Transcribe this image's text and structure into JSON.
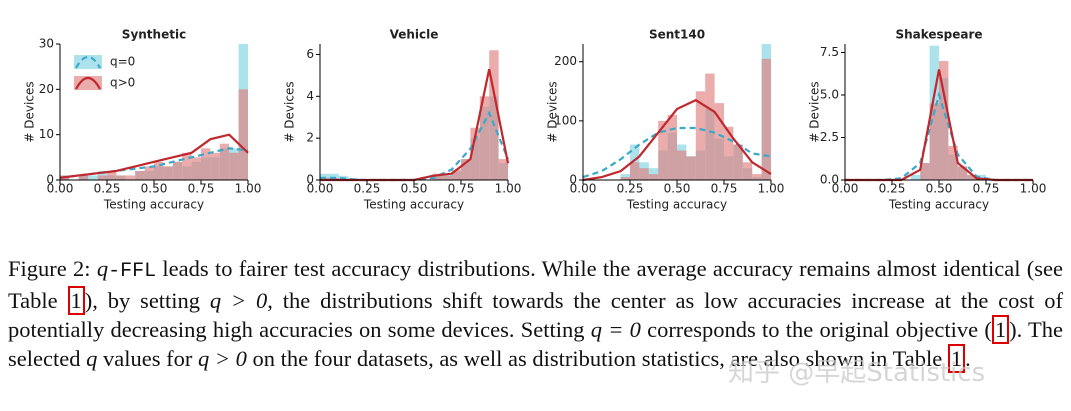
{
  "chart_data": [
    {
      "type": "histogram",
      "title": "Synthetic",
      "x_label": "Testing accuracy",
      "y_label": "# Devices",
      "legend": "upper left",
      "xlim": [
        0,
        1
      ],
      "xticks": [
        {
          "value": 0,
          "label": "0.00"
        },
        {
          "value": 0.25,
          "label": "0.25"
        },
        {
          "value": 0.5,
          "label": "0.50"
        },
        {
          "value": 0.75,
          "label": "0.75"
        },
        {
          "value": 1,
          "label": "1.00"
        }
      ],
      "ylim": [
        0,
        30
      ],
      "yticks": [
        0,
        10,
        20,
        30
      ],
      "bins": [
        0,
        0.05,
        0.1,
        0.15,
        0.2,
        0.25,
        0.3,
        0.35,
        0.4,
        0.45,
        0.5,
        0.55,
        0.6,
        0.65,
        0.7,
        0.75,
        0.8,
        0.85,
        0.9,
        0.95,
        1
      ],
      "curve_x": [
        0,
        0.1,
        0.2,
        0.3,
        0.4,
        0.5,
        0.6,
        0.7,
        0.8,
        0.9,
        1
      ],
      "series": [
        {
          "name": "q=0",
          "color": "#7fd3e0",
          "line_color": "#3aa8c8",
          "values": [
            1,
            0,
            1,
            1,
            2,
            1,
            1,
            0,
            2,
            2,
            3,
            3,
            4,
            3,
            4,
            5,
            5,
            7,
            7,
            30
          ],
          "curve": [
            0.5,
            1,
            1.5,
            2,
            2.5,
            3,
            4,
            5,
            6,
            7,
            6.5
          ]
        },
        {
          "name": "q>0",
          "color": "#e07f7f",
          "line_color": "#c0282d",
          "values": [
            1,
            0,
            1,
            0,
            1,
            2,
            1,
            1,
            2,
            3,
            4,
            3,
            4,
            6,
            5,
            7,
            6,
            8,
            6,
            20
          ],
          "curve": [
            0.5,
            1,
            1.5,
            2,
            3,
            4,
            5,
            6,
            9,
            10,
            6
          ]
        }
      ]
    },
    {
      "type": "histogram",
      "title": "Vehicle",
      "x_label": "Testing accuracy",
      "y_label": "# Devices",
      "xlim": [
        0,
        1
      ],
      "xticks": [
        {
          "value": 0,
          "label": "0.00"
        },
        {
          "value": 0.25,
          "label": "0.25"
        },
        {
          "value": 0.5,
          "label": "0.50"
        },
        {
          "value": 0.75,
          "label": "0.75"
        },
        {
          "value": 1,
          "label": "1.00"
        }
      ],
      "ylim": [
        0,
        6.5
      ],
      "yticks": [
        0,
        2,
        4,
        6
      ],
      "bins": [
        0,
        0.05,
        0.1,
        0.15,
        0.2,
        0.25,
        0.3,
        0.35,
        0.4,
        0.45,
        0.5,
        0.55,
        0.6,
        0.65,
        0.7,
        0.75,
        0.8,
        0.85,
        0.9,
        0.95,
        1
      ],
      "curve_x": [
        0,
        0.1,
        0.2,
        0.3,
        0.4,
        0.5,
        0.6,
        0.7,
        0.8,
        0.9,
        1
      ],
      "series": [
        {
          "name": "q=0",
          "color": "#7fd3e0",
          "line_color": "#3aa8c8",
          "values": [
            0.3,
            0.3,
            0.2,
            0.1,
            0,
            0,
            0,
            0,
            0,
            0,
            0,
            0,
            0.2,
            0.3,
            0.4,
            1,
            2,
            3.5,
            4,
            0.8
          ],
          "curve": [
            0.1,
            0.1,
            0,
            0,
            0,
            0,
            0.1,
            0.5,
            1.5,
            3.2,
            1
          ]
        },
        {
          "name": "q>0",
          "color": "#e07f7f",
          "line_color": "#c0282d",
          "values": [
            0.1,
            0.1,
            0,
            0,
            0,
            0,
            0,
            0,
            0,
            0,
            0,
            0,
            0.3,
            0.2,
            0.5,
            1,
            2.5,
            4,
            6.2,
            1
          ],
          "curve": [
            0,
            0,
            0,
            0,
            0,
            0,
            0.2,
            0.3,
            1,
            5.3,
            0.8
          ]
        }
      ]
    },
    {
      "type": "histogram",
      "title": "Sent140",
      "x_label": "Testing accuracy",
      "y_label": "# Devices",
      "xlim": [
        0,
        1
      ],
      "xticks": [
        {
          "value": 0,
          "label": "0.00"
        },
        {
          "value": 0.25,
          "label": "0.25"
        },
        {
          "value": 0.5,
          "label": "0.50"
        },
        {
          "value": 0.75,
          "label": "0.75"
        },
        {
          "value": 1,
          "label": "1.00"
        }
      ],
      "ylim": [
        0,
        230
      ],
      "yticks": [
        0,
        100,
        200
      ],
      "bins": [
        0,
        0.05,
        0.1,
        0.15,
        0.2,
        0.25,
        0.3,
        0.35,
        0.4,
        0.45,
        0.5,
        0.55,
        0.6,
        0.65,
        0.7,
        0.75,
        0.8,
        0.85,
        0.9,
        0.95,
        1
      ],
      "curve_x": [
        0,
        0.1,
        0.2,
        0.3,
        0.4,
        0.5,
        0.6,
        0.7,
        0.8,
        0.9,
        1
      ],
      "series": [
        {
          "name": "q=0",
          "color": "#7fd3e0",
          "line_color": "#3aa8c8",
          "values": [
            0,
            0,
            0,
            0,
            10,
            60,
            30,
            20,
            50,
            80,
            60,
            40,
            50,
            120,
            70,
            40,
            60,
            20,
            5,
            230
          ],
          "curve": [
            5,
            15,
            35,
            60,
            80,
            88,
            88,
            80,
            65,
            45,
            40
          ]
        },
        {
          "name": "q>0",
          "color": "#e07f7f",
          "line_color": "#c0282d",
          "values": [
            0,
            0,
            0,
            0,
            5,
            30,
            20,
            10,
            100,
            110,
            50,
            40,
            150,
            180,
            130,
            90,
            60,
            30,
            10,
            205
          ],
          "curve": [
            0,
            5,
            15,
            40,
            80,
            120,
            135,
            115,
            70,
            30,
            10
          ]
        }
      ]
    },
    {
      "type": "histogram",
      "title": "Shakespeare",
      "x_label": "Testing accuracy",
      "y_label": "# Devices",
      "xlim": [
        0,
        1
      ],
      "xticks": [
        {
          "value": 0,
          "label": "0.00"
        },
        {
          "value": 0.25,
          "label": "0.25"
        },
        {
          "value": 0.5,
          "label": "0.50"
        },
        {
          "value": 0.75,
          "label": "0.75"
        },
        {
          "value": 1,
          "label": "1.00"
        }
      ],
      "ylim": [
        0,
        8
      ],
      "yticks": [
        {
          "value": 0,
          "label": "0.0"
        },
        2.5,
        {
          "value": 5,
          "label": "5.0"
        },
        7.5
      ],
      "bins": [
        0,
        0.05,
        0.1,
        0.15,
        0.2,
        0.25,
        0.3,
        0.35,
        0.4,
        0.45,
        0.5,
        0.55,
        0.6,
        0.65,
        0.7,
        0.75,
        0.8,
        0.85,
        0.9,
        0.95,
        1
      ],
      "curve_x": [
        0,
        0.1,
        0.2,
        0.3,
        0.4,
        0.5,
        0.6,
        0.7,
        0.8,
        0.9,
        1
      ],
      "series": [
        {
          "name": "q=0",
          "color": "#7fd3e0",
          "line_color": "#3aa8c8",
          "values": [
            0,
            0,
            0,
            0,
            0,
            0,
            0,
            0.3,
            1,
            7.9,
            6,
            1.5,
            0.8,
            0.3,
            0.3,
            0,
            0,
            0,
            0,
            0
          ],
          "curve": [
            0,
            0,
            0,
            0.1,
            1,
            5,
            1.5,
            0.2,
            0,
            0,
            0
          ]
        },
        {
          "name": "q>0",
          "color": "#e07f7f",
          "line_color": "#c0282d",
          "values": [
            0,
            0,
            0,
            0,
            0,
            0,
            0,
            0,
            1,
            4.5,
            7,
            2,
            0.8,
            0.3,
            0,
            0,
            0,
            0,
            0,
            0
          ],
          "curve": [
            0,
            0,
            0,
            0,
            0.6,
            6.5,
            1,
            0.1,
            0,
            0,
            0
          ]
        }
      ]
    }
  ],
  "caption": {
    "parts": [
      "Figure 2: ",
      "q",
      "-FFL",
      " leads to fairer test accuracy distributions. While the average accuracy remains almost identical (see Table ",
      "1",
      "), by setting ",
      "q > 0",
      ", the distributions shift towards the center as low accuracies increase at the cost of potentially decreasing high accuracies on some devices. Setting ",
      "q = 0",
      " corresponds to the original objective (",
      "1",
      "). The selected ",
      "q",
      " values for ",
      "q > 0",
      " on the four datasets, as well as distribution statistics, are also shown in Table ",
      "1",
      "."
    ]
  },
  "watermark": "知乎 @早起Statistics"
}
